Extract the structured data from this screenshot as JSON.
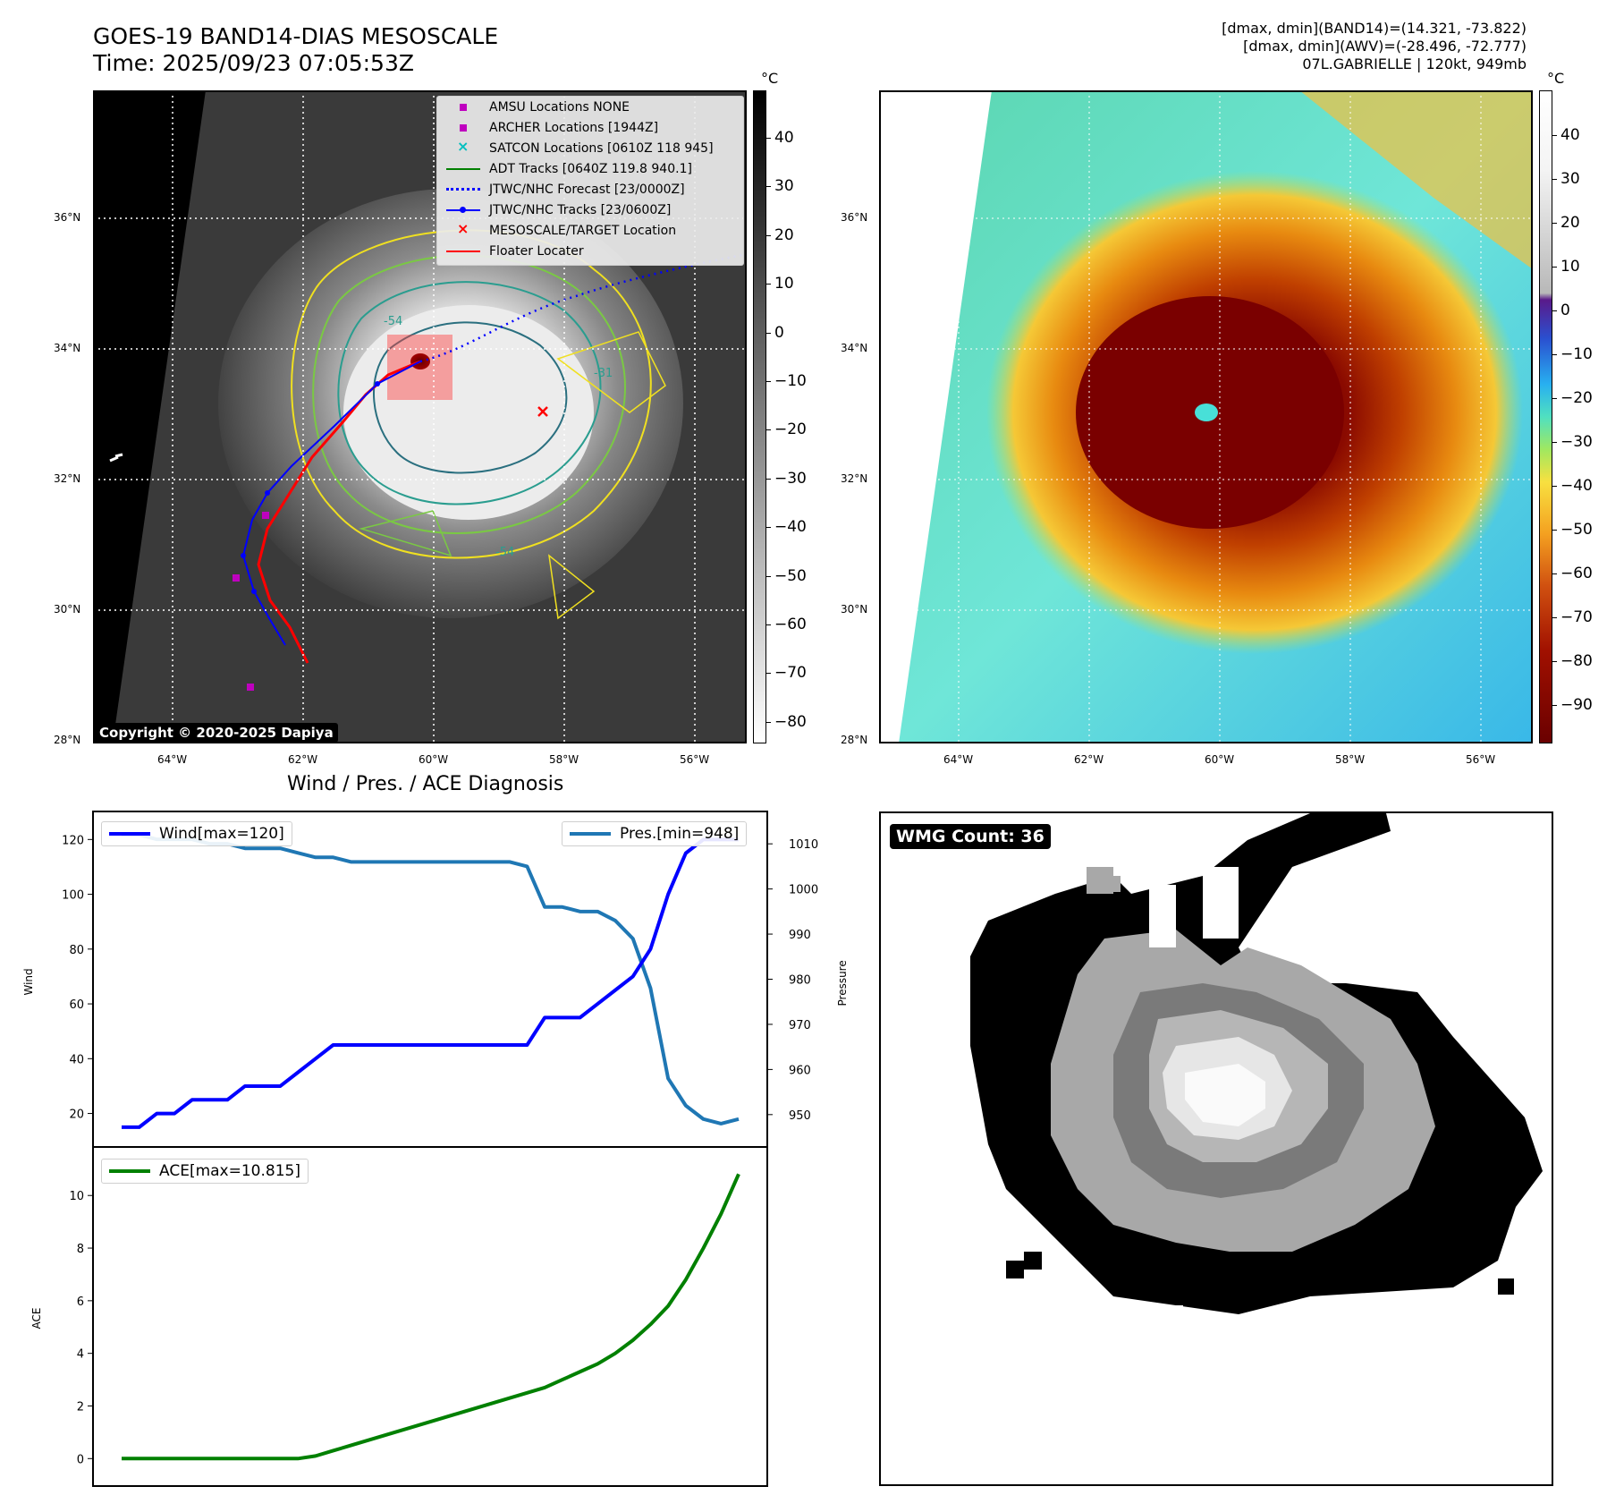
{
  "header": {
    "title_line1": "GOES-19 BAND14-DIAS MESOSCALE",
    "title_line2": "Time: 2025/09/23 07:05:53Z",
    "info_line1": "[dmax, dmin](BAND14)=(14.321, -73.822)",
    "info_line2": "[dmax, dmin](AWV)=(-28.496, -72.777)",
    "info_line3": "07L.GABRIELLE | 120kt, 949mb"
  },
  "map_axes": {
    "lat_labels": [
      "36°N",
      "34°N",
      "32°N",
      "30°N",
      "28°N"
    ],
    "lon_labels": [
      "64°W",
      "62°W",
      "60°W",
      "58°W",
      "56°W"
    ]
  },
  "colorbar_gray": {
    "unit": "°C",
    "ticks": [
      "40",
      "30",
      "20",
      "10",
      "0",
      "−10",
      "−20",
      "−30",
      "−40",
      "−50",
      "−60",
      "−70",
      "−80"
    ]
  },
  "colorbar_color": {
    "unit": "°C",
    "ticks": [
      "40",
      "30",
      "20",
      "10",
      "0",
      "−10",
      "−20",
      "−30",
      "−40",
      "−50",
      "−60",
      "−70",
      "−80",
      "−90"
    ]
  },
  "map_legend": {
    "items": [
      {
        "label": "AMSU Locations NONE",
        "symbol": "square",
        "color": "#bf00bf"
      },
      {
        "label": "ARCHER Locations [1944Z]",
        "symbol": "square",
        "color": "#bf00bf"
      },
      {
        "label": "SATCON Locations [0610Z 118 945]",
        "symbol": "x",
        "color": "#00bfbf"
      },
      {
        "label": "ADT Tracks [0640Z 119.8 940.1]",
        "symbol": "line",
        "color": "#008000"
      },
      {
        "label": "JTWC/NHC Forecast [23/0000Z]",
        "symbol": "dotted",
        "color": "#0000ff"
      },
      {
        "label": "JTWC/NHC Tracks [23/0600Z]",
        "symbol": "line-dot",
        "color": "#0000ff"
      },
      {
        "label": "MESOSCALE/TARGET Location",
        "symbol": "x",
        "color": "#ff0000"
      },
      {
        "label": "Floater Locater",
        "symbol": "line",
        "color": "#ff0000"
      }
    ]
  },
  "contour_labels": [
    "-54",
    "-31",
    "-54"
  ],
  "copyright": "Copyright © 2020-2025 Dapiya",
  "wmg_badge": "WMG Count: 36",
  "diagnosis": {
    "title": "Wind / Pres. / ACE Diagnosis",
    "wind_ylabel": "Wind",
    "pres_ylabel": "Pressure",
    "ace_ylabel": "ACE",
    "wind_legend": "Wind[max=120]",
    "pres_legend": "Pres.[min=948]",
    "ace_legend": "ACE[max=10.815]"
  },
  "colors": {
    "wind": "#0000ff",
    "pressure": "#1f77b4",
    "ace": "#008000",
    "target": "#ff0000"
  },
  "chart_data": [
    {
      "type": "line",
      "title": "Wind / Pres. / ACE Diagnosis",
      "xlabel": "",
      "ylabel": "Wind",
      "ylim": [
        13,
        125
      ],
      "y2label": "Pressure",
      "y2lim": [
        946,
        1014
      ],
      "yticks": [
        20,
        40,
        60,
        80,
        100,
        120
      ],
      "y2ticks": [
        950,
        960,
        970,
        980,
        990,
        1000,
        1010
      ],
      "x": [
        0,
        1,
        2,
        3,
        4,
        5,
        6,
        7,
        8,
        9,
        10,
        11,
        12,
        13,
        14,
        15,
        16,
        17,
        18,
        19,
        20,
        21,
        22,
        23,
        24,
        25,
        26,
        27,
        28,
        29,
        30,
        31,
        32,
        33,
        34,
        35
      ],
      "series": [
        {
          "name": "Wind[max=120]",
          "axis": "left",
          "values": [
            15,
            15,
            20,
            20,
            25,
            25,
            25,
            30,
            30,
            30,
            35,
            40,
            45,
            45,
            45,
            45,
            45,
            45,
            45,
            45,
            45,
            45,
            45,
            45,
            55,
            55,
            55,
            60,
            65,
            70,
            80,
            100,
            115,
            120,
            120,
            120
          ]
        },
        {
          "name": "Pres.[min=948]",
          "axis": "right",
          "values": [
            1012,
            1012,
            1011,
            1011,
            1011,
            1010,
            1010,
            1009,
            1009,
            1009,
            1008,
            1007,
            1007,
            1006,
            1006,
            1006,
            1006,
            1006,
            1006,
            1006,
            1006,
            1006,
            1006,
            1005,
            996,
            996,
            995,
            995,
            993,
            989,
            978,
            958,
            952,
            949,
            948,
            949
          ]
        }
      ]
    },
    {
      "type": "line",
      "title": "",
      "xlabel": "",
      "ylabel": "ACE",
      "ylim": [
        -0.5,
        11.3
      ],
      "yticks": [
        0,
        2,
        4,
        6,
        8,
        10
      ],
      "x": [
        0,
        1,
        2,
        3,
        4,
        5,
        6,
        7,
        8,
        9,
        10,
        11,
        12,
        13,
        14,
        15,
        16,
        17,
        18,
        19,
        20,
        21,
        22,
        23,
        24,
        25,
        26,
        27,
        28,
        29,
        30,
        31,
        32,
        33,
        34,
        35
      ],
      "series": [
        {
          "name": "ACE[max=10.815]",
          "values": [
            0,
            0,
            0,
            0,
            0,
            0,
            0,
            0,
            0,
            0,
            0,
            0.1,
            0.3,
            0.5,
            0.7,
            0.9,
            1.1,
            1.3,
            1.5,
            1.7,
            1.9,
            2.1,
            2.3,
            2.5,
            2.7,
            3.0,
            3.3,
            3.6,
            4.0,
            4.5,
            5.1,
            5.8,
            6.8,
            8.0,
            9.3,
            10.815
          ]
        }
      ]
    }
  ]
}
